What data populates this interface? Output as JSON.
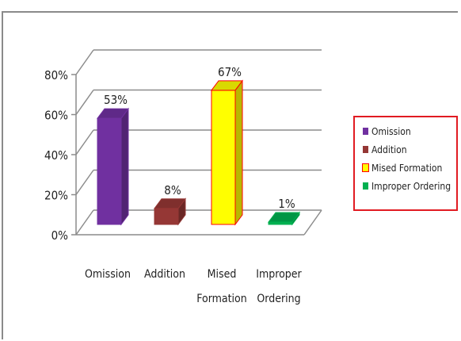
{
  "chart_data": {
    "type": "bar",
    "categories": [
      "Omission",
      "Addition",
      "Mised Formation",
      "Improper Ordering"
    ],
    "category_lines": [
      [
        "Omission"
      ],
      [
        "Addition"
      ],
      [
        "Mised",
        "Formation"
      ],
      [
        "Improper",
        "Ordering"
      ]
    ],
    "values": [
      53,
      8,
      67,
      1
    ],
    "value_labels": [
      "53%",
      "8%",
      "67%",
      "1%"
    ],
    "ylim": [
      0,
      80
    ],
    "yticks": [
      0,
      20,
      40,
      60,
      80
    ],
    "ytick_labels": [
      "0%",
      "20%",
      "40%",
      "60%",
      "80%"
    ],
    "grid": true,
    "legend_position": "right",
    "colors": [
      "#7030a0",
      "#953735",
      "#ffff00",
      "#00b050"
    ],
    "edge_colors": [
      "#7030a0",
      "#953735",
      "#ff0000",
      "#00b050"
    ],
    "legend": [
      {
        "label": "Omission",
        "color": "#7030a0"
      },
      {
        "label": "Addition",
        "color": "#953735"
      },
      {
        "label": "Mised Formation",
        "color": "#ffff00"
      },
      {
        "label": "Improper Ordering",
        "color": "#00b050"
      }
    ]
  }
}
